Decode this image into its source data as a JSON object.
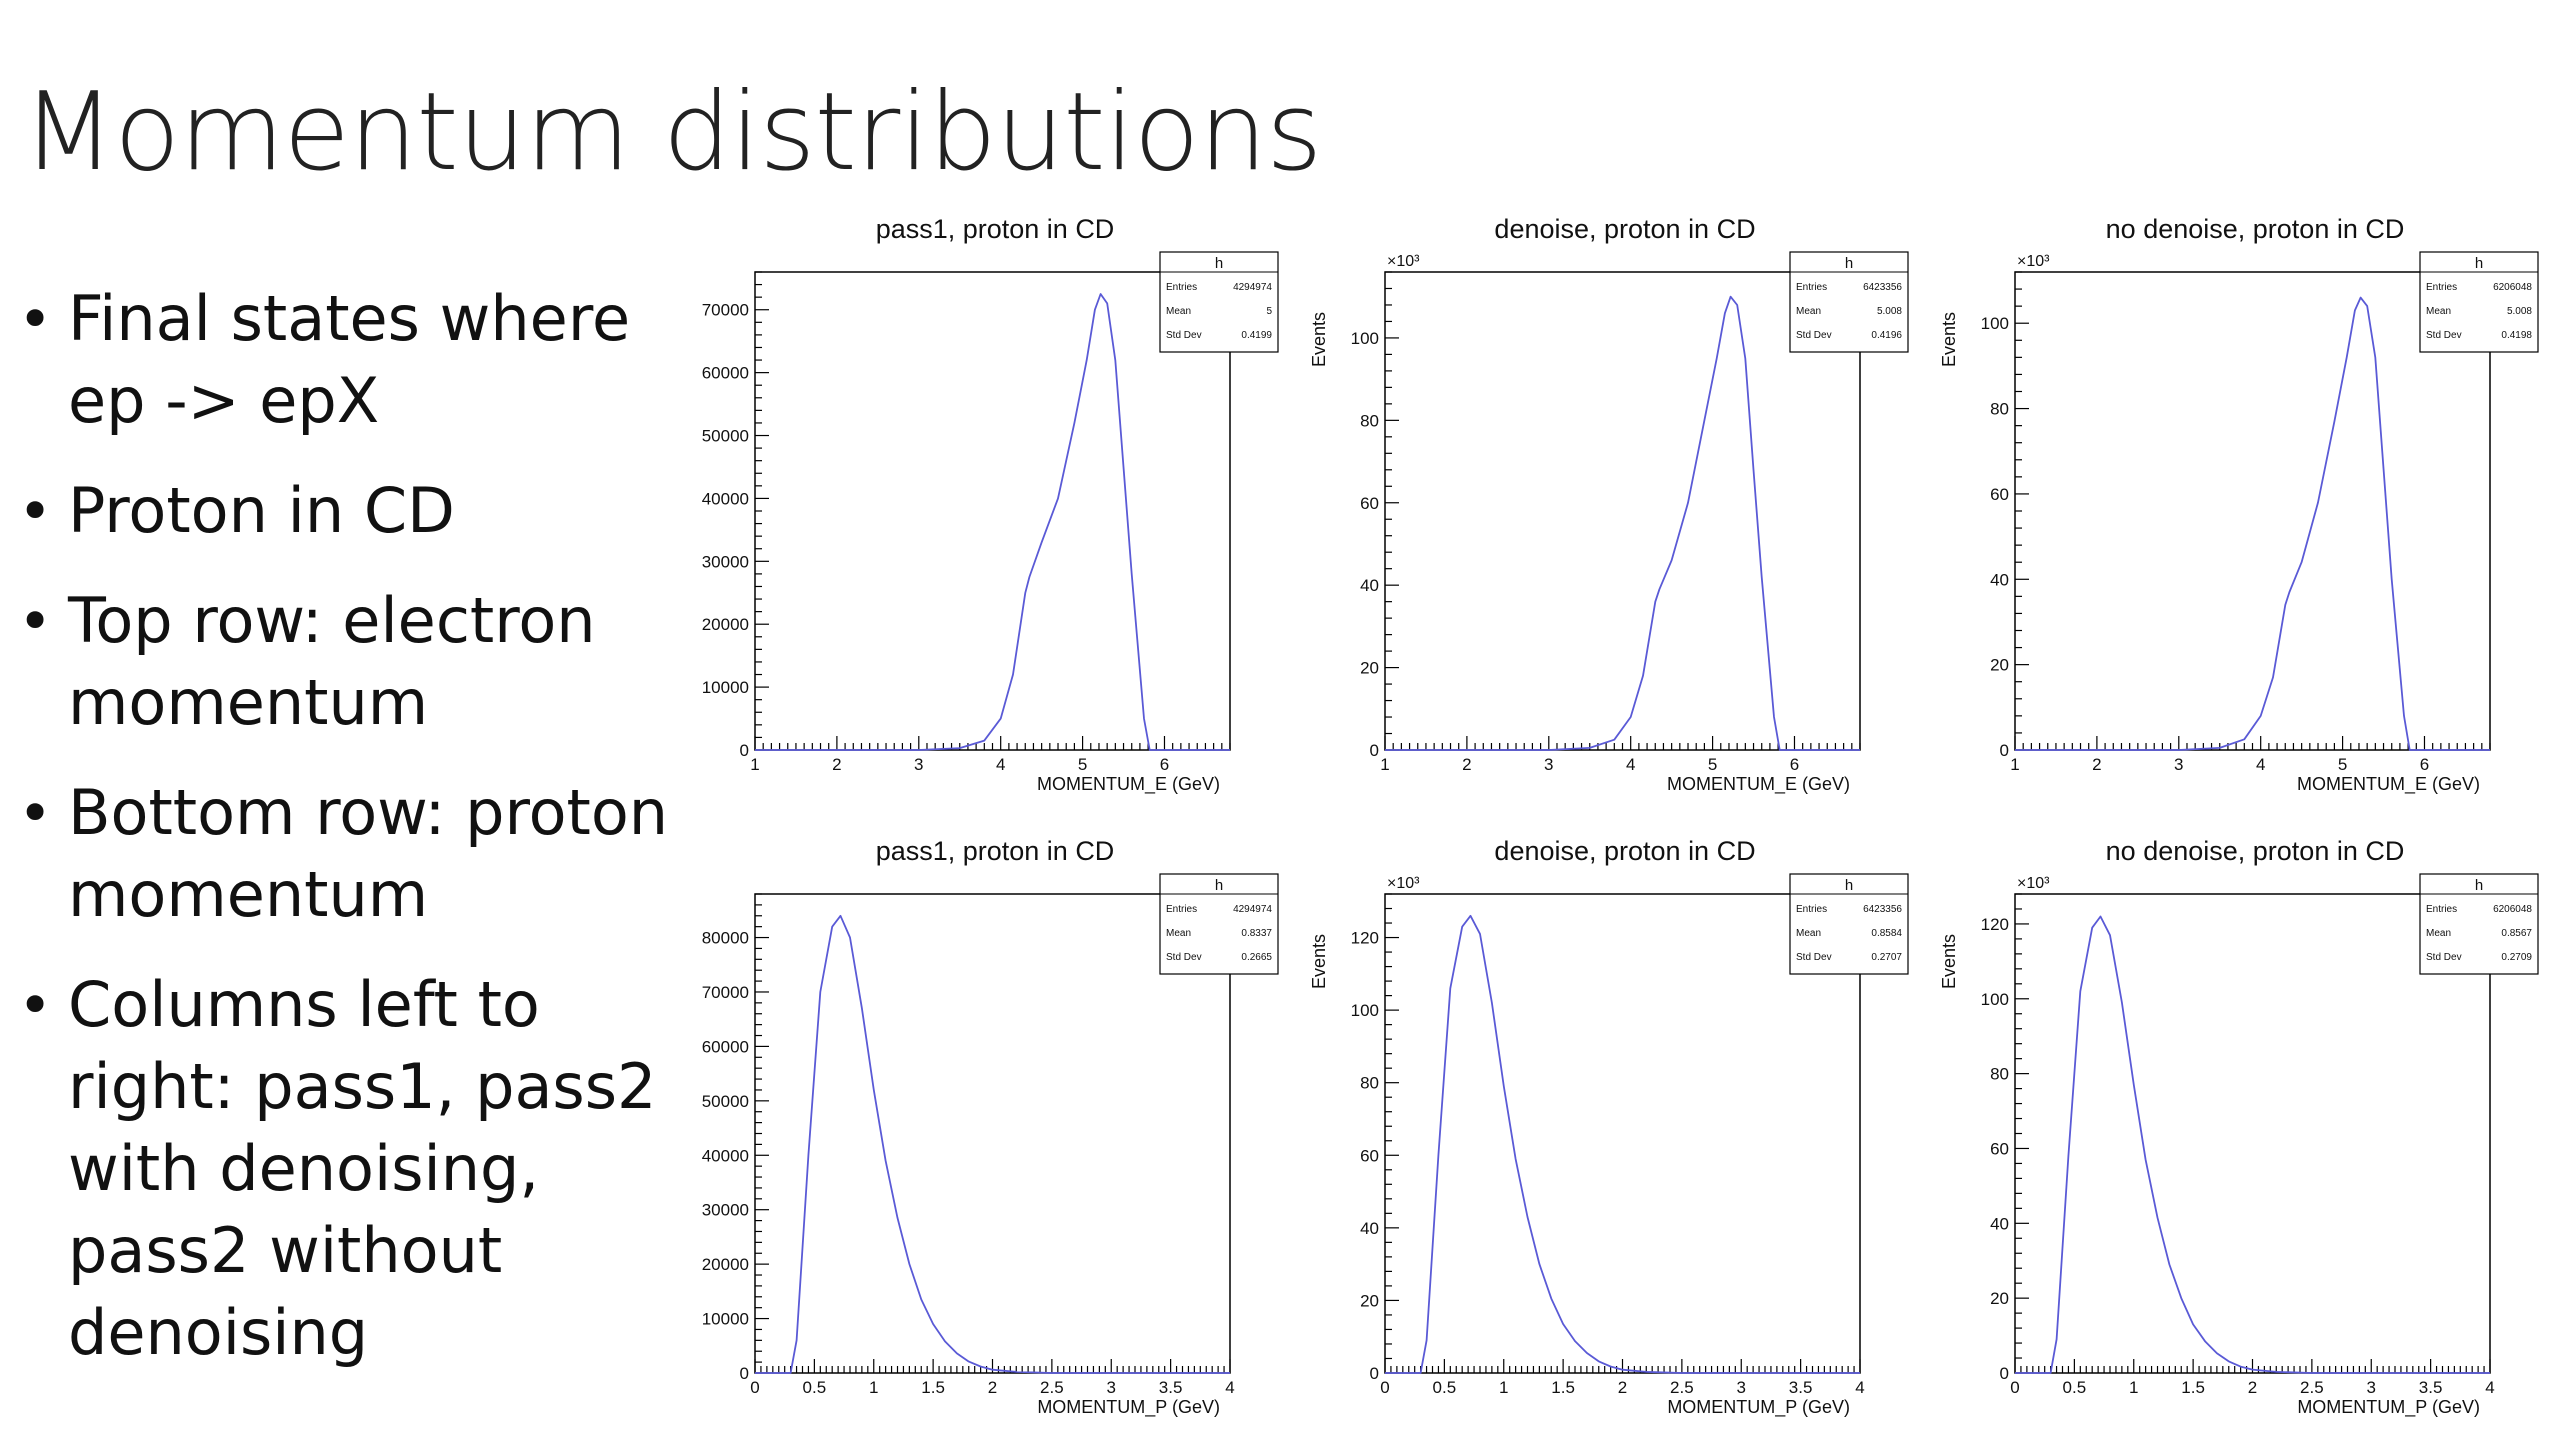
{
  "slide": {
    "title": "Momentum distributions",
    "bullets": [
      "Final states where ep -> epX",
      "Proton in CD",
      "Top row: electron momentum",
      "Bottom row: proton momentum",
      "Columns left to right: pass1, pass2 with denoising, pass2 without denoising"
    ]
  },
  "colors": {
    "curve": "#5a5ad6",
    "axis": "#000000",
    "text": "#111111"
  },
  "chart_data": [
    {
      "type": "line",
      "title": "pass1, proton in CD",
      "xlabel": "MOMENTUM_E (GeV)",
      "ylabel": "",
      "yexp": "",
      "xlim": [
        1,
        6.8
      ],
      "ylim": [
        0,
        76000
      ],
      "xticks": [
        1,
        2,
        3,
        4,
        5,
        6
      ],
      "xtick_labels": [
        "1",
        "2",
        "3",
        "4",
        "5",
        "6"
      ],
      "yticks": [
        0,
        10000,
        20000,
        30000,
        40000,
        50000,
        60000,
        70000
      ],
      "ytick_labels": [
        "0",
        "10000",
        "20000",
        "30000",
        "40000",
        "50000",
        "60000",
        "70000"
      ],
      "stats": {
        "name": "h",
        "rows": [
          [
            "Entries",
            "4294974"
          ],
          [
            "Mean",
            "5"
          ],
          [
            "Std Dev",
            "0.4199"
          ]
        ]
      },
      "series": [
        {
          "x": [
            1,
            3.0,
            3.5,
            3.8,
            4.0,
            4.15,
            4.3,
            4.35,
            4.5,
            4.7,
            4.9,
            5.05,
            5.15,
            5.22,
            5.3,
            5.4,
            5.5,
            5.6,
            5.75,
            5.82,
            6.8
          ],
          "y": [
            0,
            0,
            300,
            1500,
            5000,
            12000,
            25000,
            27500,
            33000,
            40000,
            52000,
            62000,
            70000,
            72500,
            71000,
            62000,
            45000,
            28000,
            5000,
            0,
            0
          ]
        }
      ]
    },
    {
      "type": "line",
      "title": "denoise, proton in CD",
      "xlabel": "MOMENTUM_E (GeV)",
      "ylabel": "Events",
      "yexp": "×10³",
      "xlim": [
        1,
        6.8
      ],
      "ylim": [
        0,
        116
      ],
      "xticks": [
        1,
        2,
        3,
        4,
        5,
        6
      ],
      "xtick_labels": [
        "1",
        "2",
        "3",
        "4",
        "5",
        "6"
      ],
      "yticks": [
        0,
        20,
        40,
        60,
        80,
        100
      ],
      "ytick_labels": [
        "0",
        "20",
        "40",
        "60",
        "80",
        "100"
      ],
      "stats": {
        "name": "h",
        "rows": [
          [
            "Entries",
            "6423356"
          ],
          [
            "Mean",
            "5.008"
          ],
          [
            "Std Dev",
            "0.4196"
          ]
        ]
      },
      "series": [
        {
          "x": [
            1,
            3.0,
            3.5,
            3.8,
            4.0,
            4.15,
            4.3,
            4.35,
            4.5,
            4.7,
            4.9,
            5.05,
            5.15,
            5.22,
            5.3,
            5.4,
            5.5,
            5.6,
            5.75,
            5.82,
            6.8
          ],
          "y": [
            0,
            0,
            0.5,
            2.5,
            8,
            18,
            36,
            39,
            46,
            60,
            80,
            95,
            106,
            110,
            108,
            95,
            68,
            42,
            8,
            0,
            0
          ]
        }
      ]
    },
    {
      "type": "line",
      "title": "no denoise, proton in CD",
      "xlabel": "MOMENTUM_E (GeV)",
      "ylabel": "Events",
      "yexp": "×10³",
      "xlim": [
        1,
        6.8
      ],
      "ylim": [
        0,
        112
      ],
      "xticks": [
        1,
        2,
        3,
        4,
        5,
        6
      ],
      "xtick_labels": [
        "1",
        "2",
        "3",
        "4",
        "5",
        "6"
      ],
      "yticks": [
        0,
        20,
        40,
        60,
        80,
        100
      ],
      "ytick_labels": [
        "0",
        "20",
        "40",
        "60",
        "80",
        "100"
      ],
      "stats": {
        "name": "h",
        "rows": [
          [
            "Entries",
            "6206048"
          ],
          [
            "Mean",
            "5.008"
          ],
          [
            "Std Dev",
            "0.4198"
          ]
        ]
      },
      "series": [
        {
          "x": [
            1,
            3.0,
            3.5,
            3.8,
            4.0,
            4.15,
            4.3,
            4.35,
            4.5,
            4.7,
            4.9,
            5.05,
            5.15,
            5.22,
            5.3,
            5.4,
            5.5,
            5.6,
            5.75,
            5.82,
            6.8
          ],
          "y": [
            0,
            0,
            0.5,
            2.5,
            8,
            17,
            34,
            37,
            44,
            58,
            77,
            92,
            103,
            106,
            104,
            92,
            66,
            40,
            8,
            0,
            0
          ]
        }
      ]
    },
    {
      "type": "line",
      "title": "pass1, proton in CD",
      "xlabel": "MOMENTUM_P (GeV)",
      "ylabel": "",
      "yexp": "",
      "xlim": [
        0,
        4
      ],
      "ylim": [
        0,
        88000
      ],
      "xticks": [
        0,
        0.5,
        1,
        1.5,
        2,
        2.5,
        3,
        3.5,
        4
      ],
      "xtick_labels": [
        "0",
        "0.5",
        "1",
        "1.5",
        "2",
        "2.5",
        "3",
        "3.5",
        "4"
      ],
      "yticks": [
        0,
        10000,
        20000,
        30000,
        40000,
        50000,
        60000,
        70000,
        80000
      ],
      "ytick_labels": [
        "0",
        "10000",
        "20000",
        "30000",
        "40000",
        "50000",
        "60000",
        "70000",
        "80000"
      ],
      "stats": {
        "name": "h",
        "rows": [
          [
            "Entries",
            "4294974"
          ],
          [
            "Mean",
            "0.8337"
          ],
          [
            "Std Dev",
            "0.2665"
          ]
        ]
      },
      "series": [
        {
          "x": [
            0,
            0.3,
            0.35,
            0.45,
            0.55,
            0.65,
            0.72,
            0.8,
            0.9,
            1.0,
            1.1,
            1.2,
            1.3,
            1.4,
            1.5,
            1.6,
            1.7,
            1.8,
            1.9,
            2.0,
            2.2,
            2.5,
            4
          ],
          "y": [
            0,
            0,
            6000,
            40000,
            70000,
            82000,
            84000,
            80000,
            67000,
            52000,
            39000,
            28500,
            20000,
            13500,
            9000,
            5800,
            3600,
            2100,
            1200,
            600,
            200,
            0,
            0
          ]
        }
      ]
    },
    {
      "type": "line",
      "title": "denoise, proton in CD",
      "xlabel": "MOMENTUM_P (GeV)",
      "ylabel": "Events",
      "yexp": "×10³",
      "xlim": [
        0,
        4
      ],
      "ylim": [
        0,
        132
      ],
      "xticks": [
        0,
        0.5,
        1,
        1.5,
        2,
        2.5,
        3,
        3.5,
        4
      ],
      "xtick_labels": [
        "0",
        "0.5",
        "1",
        "1.5",
        "2",
        "2.5",
        "3",
        "3.5",
        "4"
      ],
      "yticks": [
        0,
        20,
        40,
        60,
        80,
        100,
        120
      ],
      "ytick_labels": [
        "0",
        "20",
        "40",
        "60",
        "80",
        "100",
        "120"
      ],
      "stats": {
        "name": "h",
        "rows": [
          [
            "Entries",
            "6423356"
          ],
          [
            "Mean",
            "0.8584"
          ],
          [
            "Std Dev",
            "0.2707"
          ]
        ]
      },
      "series": [
        {
          "x": [
            0,
            0.3,
            0.35,
            0.45,
            0.55,
            0.65,
            0.72,
            0.8,
            0.9,
            1.0,
            1.1,
            1.2,
            1.3,
            1.4,
            1.5,
            1.6,
            1.7,
            1.8,
            1.9,
            2.0,
            2.2,
            2.5,
            4
          ],
          "y": [
            0,
            0,
            9,
            60,
            106,
            123,
            126,
            121,
            102,
            79,
            59,
            43,
            30,
            20.5,
            13.5,
            8.8,
            5.5,
            3.2,
            1.8,
            0.9,
            0.3,
            0,
            0
          ]
        }
      ]
    },
    {
      "type": "line",
      "title": "no denoise, proton in CD",
      "xlabel": "MOMENTUM_P (GeV)",
      "ylabel": "Events",
      "yexp": "×10³",
      "xlim": [
        0,
        4
      ],
      "ylim": [
        0,
        128
      ],
      "xticks": [
        0,
        0.5,
        1,
        1.5,
        2,
        2.5,
        3,
        3.5,
        4
      ],
      "xtick_labels": [
        "0",
        "0.5",
        "1",
        "1.5",
        "2",
        "2.5",
        "3",
        "3.5",
        "4"
      ],
      "yticks": [
        0,
        20,
        40,
        60,
        80,
        100,
        120
      ],
      "ytick_labels": [
        "0",
        "20",
        "40",
        "60",
        "80",
        "100",
        "120"
      ],
      "stats": {
        "name": "h",
        "rows": [
          [
            "Entries",
            "6206048"
          ],
          [
            "Mean",
            "0.8567"
          ],
          [
            "Std Dev",
            "0.2709"
          ]
        ]
      },
      "series": [
        {
          "x": [
            0,
            0.3,
            0.35,
            0.45,
            0.55,
            0.65,
            0.72,
            0.8,
            0.9,
            1.0,
            1.1,
            1.2,
            1.3,
            1.4,
            1.5,
            1.6,
            1.7,
            1.8,
            1.9,
            2.0,
            2.2,
            2.5,
            4
          ],
          "y": [
            0,
            0,
            9,
            58,
            102,
            119,
            122,
            117,
            99,
            77,
            57,
            41.5,
            29,
            20,
            13,
            8.5,
            5.3,
            3.1,
            1.7,
            0.9,
            0.3,
            0,
            0
          ]
        }
      ]
    }
  ]
}
